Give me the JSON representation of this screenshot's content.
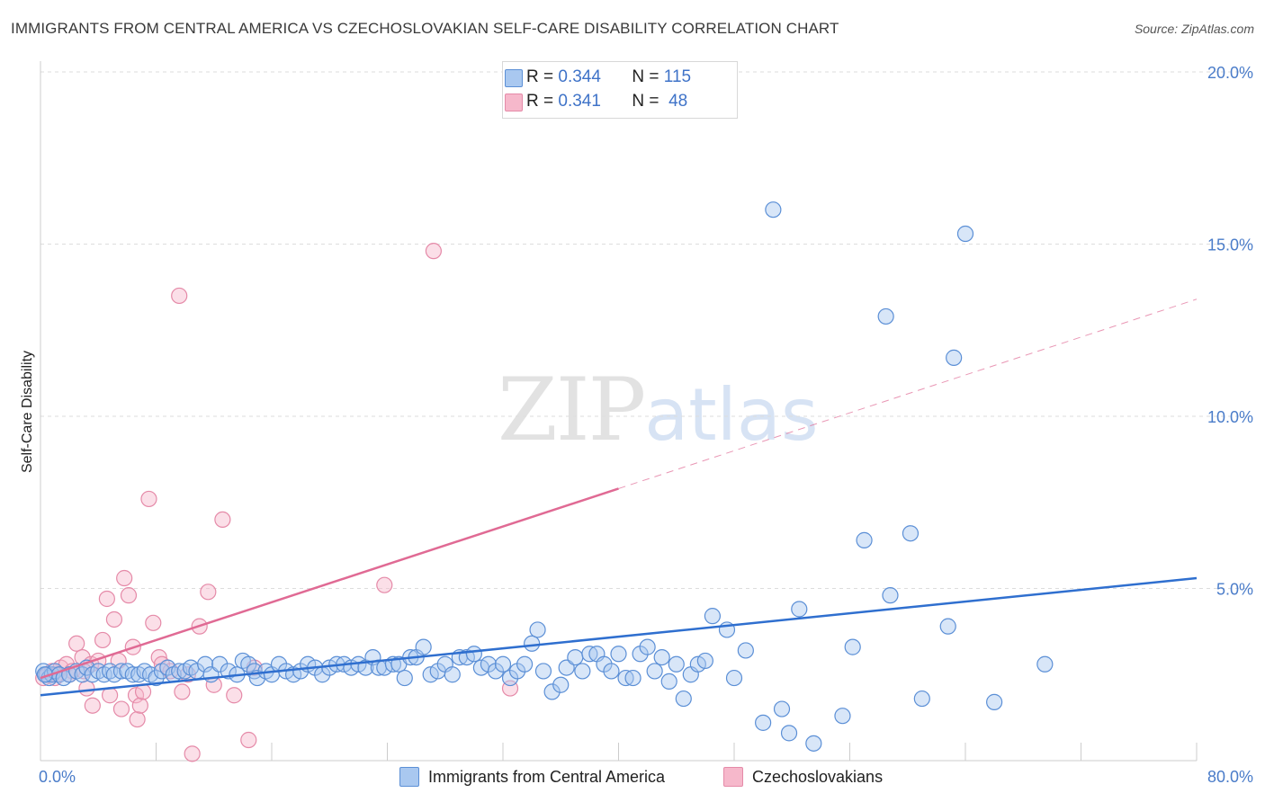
{
  "header": {
    "title": "IMMIGRANTS FROM CENTRAL AMERICA VS CZECHOSLOVAKIAN SELF-CARE DISABILITY CORRELATION CHART",
    "source": "Source: ZipAtlas.com"
  },
  "watermark": {
    "zip": "ZIP",
    "atlas": "atlas"
  },
  "legend": {
    "rows": [
      {
        "r_label": "R =",
        "r_value": "0.344",
        "n_label": "N =",
        "n_value": "115",
        "color": "#a9c8f0"
      },
      {
        "r_label": "R =",
        "r_value": "0.341",
        "n_label": "N =",
        "n_value": "48",
        "color": "#f6b8cb"
      }
    ]
  },
  "colors": {
    "blue_fill": "#a9c8f0",
    "blue_stroke": "#5b8fd6",
    "blue_line": "#2f6fcf",
    "pink_fill": "#f6b8cb",
    "pink_stroke": "#e58aa8",
    "pink_line": "#e06a94",
    "grid": "#dddddd",
    "tick_label": "#4a7cc9"
  },
  "chart_data": {
    "type": "scatter",
    "ylabel": "Self-Care Disability",
    "xlim": [
      0,
      80
    ],
    "ylim": [
      0,
      20
    ],
    "x_tick_labels": [
      "0.0%",
      "80.0%"
    ],
    "y_ticks": [
      {
        "value": 5,
        "label": "5.0%"
      },
      {
        "value": 10,
        "label": "10.0%"
      },
      {
        "value": 15,
        "label": "15.0%"
      },
      {
        "value": 20,
        "label": "20.0%"
      }
    ],
    "grid": true,
    "legend_position": "top-center",
    "series": [
      {
        "name": "Immigrants from Central America",
        "color": "#a9c8f0",
        "trend": {
          "x0": 0,
          "y0": 1.9,
          "x1": 80,
          "y1": 5.3
        },
        "points": [
          [
            0.2,
            2.6
          ],
          [
            0.4,
            2.5
          ],
          [
            0.6,
            2.4
          ],
          [
            0.8,
            2.5
          ],
          [
            1.0,
            2.6
          ],
          [
            1.3,
            2.5
          ],
          [
            1.6,
            2.4
          ],
          [
            2.0,
            2.5
          ],
          [
            2.5,
            2.6
          ],
          [
            2.9,
            2.5
          ],
          [
            3.2,
            2.7
          ],
          [
            3.6,
            2.5
          ],
          [
            4.0,
            2.6
          ],
          [
            4.4,
            2.5
          ],
          [
            4.8,
            2.6
          ],
          [
            5.1,
            2.5
          ],
          [
            5.6,
            2.6
          ],
          [
            6.0,
            2.6
          ],
          [
            6.4,
            2.5
          ],
          [
            6.8,
            2.5
          ],
          [
            7.2,
            2.6
          ],
          [
            7.6,
            2.5
          ],
          [
            8.0,
            2.4
          ],
          [
            8.4,
            2.6
          ],
          [
            8.8,
            2.7
          ],
          [
            9.2,
            2.5
          ],
          [
            9.6,
            2.6
          ],
          [
            10.0,
            2.6
          ],
          [
            10.4,
            2.7
          ],
          [
            10.8,
            2.6
          ],
          [
            11.4,
            2.8
          ],
          [
            11.8,
            2.5
          ],
          [
            12.4,
            2.8
          ],
          [
            13.0,
            2.6
          ],
          [
            13.6,
            2.5
          ],
          [
            14.0,
            2.9
          ],
          [
            14.4,
            2.8
          ],
          [
            14.8,
            2.6
          ],
          [
            15.0,
            2.4
          ],
          [
            15.6,
            2.6
          ],
          [
            16.0,
            2.5
          ],
          [
            16.5,
            2.8
          ],
          [
            17.0,
            2.6
          ],
          [
            17.5,
            2.5
          ],
          [
            18.0,
            2.6
          ],
          [
            18.5,
            2.8
          ],
          [
            19.0,
            2.7
          ],
          [
            19.5,
            2.5
          ],
          [
            20.0,
            2.7
          ],
          [
            20.5,
            2.8
          ],
          [
            21.0,
            2.8
          ],
          [
            21.5,
            2.7
          ],
          [
            22.0,
            2.8
          ],
          [
            22.5,
            2.7
          ],
          [
            23.0,
            3.0
          ],
          [
            23.4,
            2.7
          ],
          [
            23.8,
            2.7
          ],
          [
            24.4,
            2.8
          ],
          [
            24.8,
            2.8
          ],
          [
            25.2,
            2.4
          ],
          [
            25.6,
            3.0
          ],
          [
            26.0,
            3.0
          ],
          [
            26.5,
            3.3
          ],
          [
            27.0,
            2.5
          ],
          [
            27.5,
            2.6
          ],
          [
            28.0,
            2.8
          ],
          [
            28.5,
            2.5
          ],
          [
            29.0,
            3.0
          ],
          [
            29.5,
            3.0
          ],
          [
            30.0,
            3.1
          ],
          [
            30.5,
            2.7
          ],
          [
            31.0,
            2.8
          ],
          [
            31.5,
            2.6
          ],
          [
            32.0,
            2.8
          ],
          [
            32.5,
            2.4
          ],
          [
            33.0,
            2.6
          ],
          [
            33.5,
            2.8
          ],
          [
            34.0,
            3.4
          ],
          [
            34.4,
            3.8
          ],
          [
            34.8,
            2.6
          ],
          [
            35.4,
            2.0
          ],
          [
            36.0,
            2.2
          ],
          [
            36.4,
            2.7
          ],
          [
            37.0,
            3.0
          ],
          [
            37.5,
            2.6
          ],
          [
            38.0,
            3.1
          ],
          [
            38.5,
            3.1
          ],
          [
            39.0,
            2.8
          ],
          [
            39.5,
            2.6
          ],
          [
            40.0,
            3.1
          ],
          [
            40.5,
            2.4
          ],
          [
            41.0,
            2.4
          ],
          [
            41.5,
            3.1
          ],
          [
            42.0,
            3.3
          ],
          [
            42.5,
            2.6
          ],
          [
            43.0,
            3.0
          ],
          [
            43.5,
            2.3
          ],
          [
            44.0,
            2.8
          ],
          [
            44.5,
            1.8
          ],
          [
            45.0,
            2.5
          ],
          [
            45.5,
            2.8
          ],
          [
            46.0,
            2.9
          ],
          [
            46.5,
            4.2
          ],
          [
            47.5,
            3.8
          ],
          [
            48.0,
            2.4
          ],
          [
            48.8,
            3.2
          ],
          [
            50.0,
            1.1
          ],
          [
            50.7,
            16.0
          ],
          [
            51.3,
            1.5
          ],
          [
            51.8,
            0.8
          ],
          [
            52.5,
            4.4
          ],
          [
            53.5,
            0.5
          ],
          [
            55.5,
            1.3
          ],
          [
            56.2,
            3.3
          ],
          [
            57.0,
            6.4
          ],
          [
            58.5,
            12.9
          ],
          [
            58.8,
            4.8
          ],
          [
            60.2,
            6.6
          ],
          [
            61.0,
            1.8
          ],
          [
            62.8,
            3.9
          ],
          [
            63.2,
            11.7
          ],
          [
            64.0,
            15.3
          ],
          [
            66.0,
            1.7
          ],
          [
            69.5,
            2.8
          ],
          [
            0.3,
            2.5
          ]
        ]
      },
      {
        "name": "Czechoslovakians",
        "color": "#f6b8cb",
        "trend": {
          "x0": 0,
          "y0": 2.4,
          "x1": 40,
          "y1": 7.9,
          "x_ext": 80,
          "y_ext": 13.4
        },
        "points": [
          [
            0.2,
            2.4
          ],
          [
            0.5,
            2.5
          ],
          [
            0.8,
            2.6
          ],
          [
            1.1,
            2.5
          ],
          [
            1.4,
            2.7
          ],
          [
            1.8,
            2.8
          ],
          [
            2.2,
            2.6
          ],
          [
            2.5,
            3.4
          ],
          [
            2.9,
            3.0
          ],
          [
            3.2,
            2.1
          ],
          [
            3.5,
            2.8
          ],
          [
            3.6,
            1.6
          ],
          [
            4.0,
            2.9
          ],
          [
            4.3,
            3.5
          ],
          [
            4.6,
            4.7
          ],
          [
            4.8,
            1.9
          ],
          [
            5.1,
            4.1
          ],
          [
            5.4,
            2.9
          ],
          [
            5.6,
            1.5
          ],
          [
            5.8,
            5.3
          ],
          [
            6.1,
            4.8
          ],
          [
            6.4,
            3.3
          ],
          [
            6.6,
            1.9
          ],
          [
            6.7,
            1.2
          ],
          [
            6.9,
            1.6
          ],
          [
            7.1,
            2.0
          ],
          [
            7.5,
            7.6
          ],
          [
            7.8,
            4.0
          ],
          [
            8.2,
            3.0
          ],
          [
            8.4,
            2.8
          ],
          [
            9.0,
            2.6
          ],
          [
            9.6,
            13.5
          ],
          [
            9.8,
            2.0
          ],
          [
            10.2,
            2.5
          ],
          [
            10.5,
            0.2
          ],
          [
            11.0,
            3.9
          ],
          [
            11.6,
            4.9
          ],
          [
            12.0,
            2.2
          ],
          [
            12.6,
            7.0
          ],
          [
            13.4,
            1.9
          ],
          [
            14.4,
            0.6
          ],
          [
            14.8,
            2.7
          ],
          [
            23.8,
            5.1
          ],
          [
            27.2,
            14.8
          ],
          [
            32.5,
            2.1
          ],
          [
            1.0,
            2.4
          ],
          [
            2.0,
            2.5
          ],
          [
            3.0,
            2.6
          ]
        ]
      }
    ]
  },
  "bottom_legend": [
    {
      "label": "Immigrants from Central America",
      "color": "#a9c8f0"
    },
    {
      "label": "Czechoslovakians",
      "color": "#f6b8cb"
    }
  ]
}
